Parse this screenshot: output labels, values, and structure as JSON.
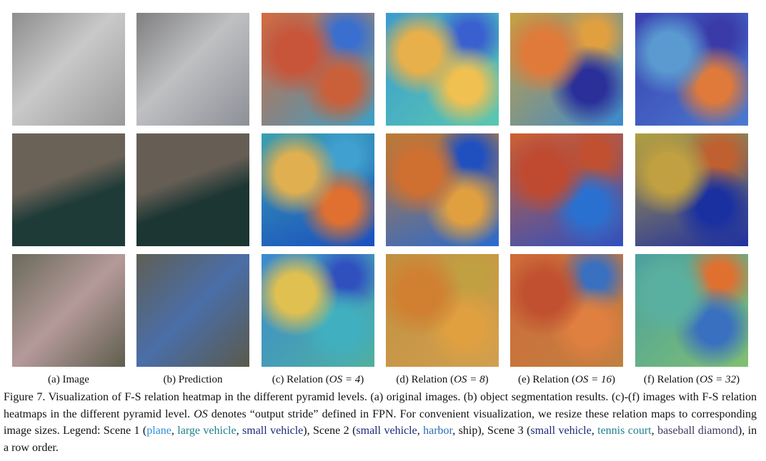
{
  "subcaptions": [
    {
      "prefix": "(a) Image",
      "math": null,
      "suffix": null
    },
    {
      "prefix": "(b) Prediction",
      "math": null,
      "suffix": null
    },
    {
      "prefix": "(c) Relation (",
      "math": "OS = 4",
      "suffix": ")"
    },
    {
      "prefix": "(d) Relation (",
      "math": "OS = 8",
      "suffix": ")"
    },
    {
      "prefix": "(e) Relation (",
      "math": "OS = 16",
      "suffix": ")"
    },
    {
      "prefix": "(f) Relation (",
      "math": "OS = 32",
      "suffix": ")"
    }
  ],
  "caption": [
    {
      "text": "Figure 7. Visualization of F-S relation heatmap in the different pyramid levels. (a) original images. (b) object segmentation results. (c)-(f) images with F-S relation heatmaps in the different pyramid level. "
    },
    {
      "text": "OS",
      "italic": true
    },
    {
      "text": " denotes “output stride” defined in FPN. For convenient visualization, we resize these relation maps to corresponding image sizes. Legend: Scene 1 ("
    },
    {
      "text": "plane",
      "color": "#2b90d9"
    },
    {
      "text": ", "
    },
    {
      "text": "large vehicle",
      "color": "#1d7f8c"
    },
    {
      "text": ", "
    },
    {
      "text": "small vehicle",
      "color": "#1c2878"
    },
    {
      "text": "), Scene 2 ("
    },
    {
      "text": "small vehicle",
      "color": "#1c2878"
    },
    {
      "text": ", "
    },
    {
      "text": "harbor",
      "color": "#2a6cb4"
    },
    {
      "text": ", ship), Scene 3 ("
    },
    {
      "text": "small vehicle",
      "color": "#1c2878"
    },
    {
      "text": ", "
    },
    {
      "text": "tennis court",
      "color": "#1d7f8c"
    },
    {
      "text": ", "
    },
    {
      "text": "baseball diamond",
      "color": "#3b3a62"
    },
    {
      "text": "), in a row order."
    }
  ]
}
